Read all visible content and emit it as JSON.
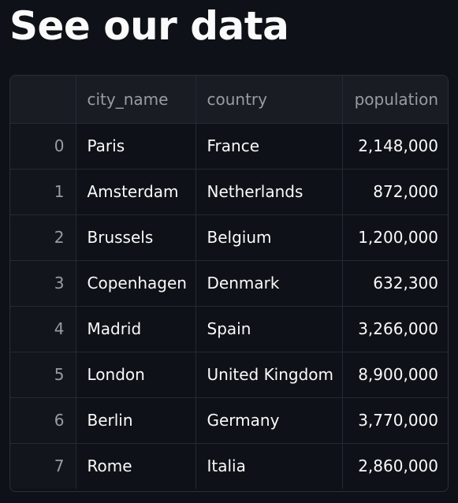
{
  "page": {
    "title": "See our data"
  },
  "table": {
    "columns": {
      "index": "",
      "city_name": "city_name",
      "country": "country",
      "population": "population"
    },
    "rows": [
      {
        "index": "0",
        "city_name": "Paris",
        "country": "France",
        "population": "2,148,000"
      },
      {
        "index": "1",
        "city_name": "Amsterdam",
        "country": "Netherlands",
        "population": "872,000"
      },
      {
        "index": "2",
        "city_name": "Brussels",
        "country": "Belgium",
        "population": "1,200,000"
      },
      {
        "index": "3",
        "city_name": "Copenhagen",
        "country": "Denmark",
        "population": "632,300"
      },
      {
        "index": "4",
        "city_name": "Madrid",
        "country": "Spain",
        "population": "3,266,000"
      },
      {
        "index": "5",
        "city_name": "London",
        "country": "United Kingdom",
        "population": "8,900,000"
      },
      {
        "index": "6",
        "city_name": "Berlin",
        "country": "Germany",
        "population": "3,770,000"
      },
      {
        "index": "7",
        "city_name": "Rome",
        "country": "Italia",
        "population": "2,860,000"
      }
    ]
  },
  "colors": {
    "background": "#0e1117",
    "header_background": "#1a1c24",
    "grid_border": "#262932",
    "text": "#fafafa",
    "muted_text": "#9a9ca3"
  }
}
